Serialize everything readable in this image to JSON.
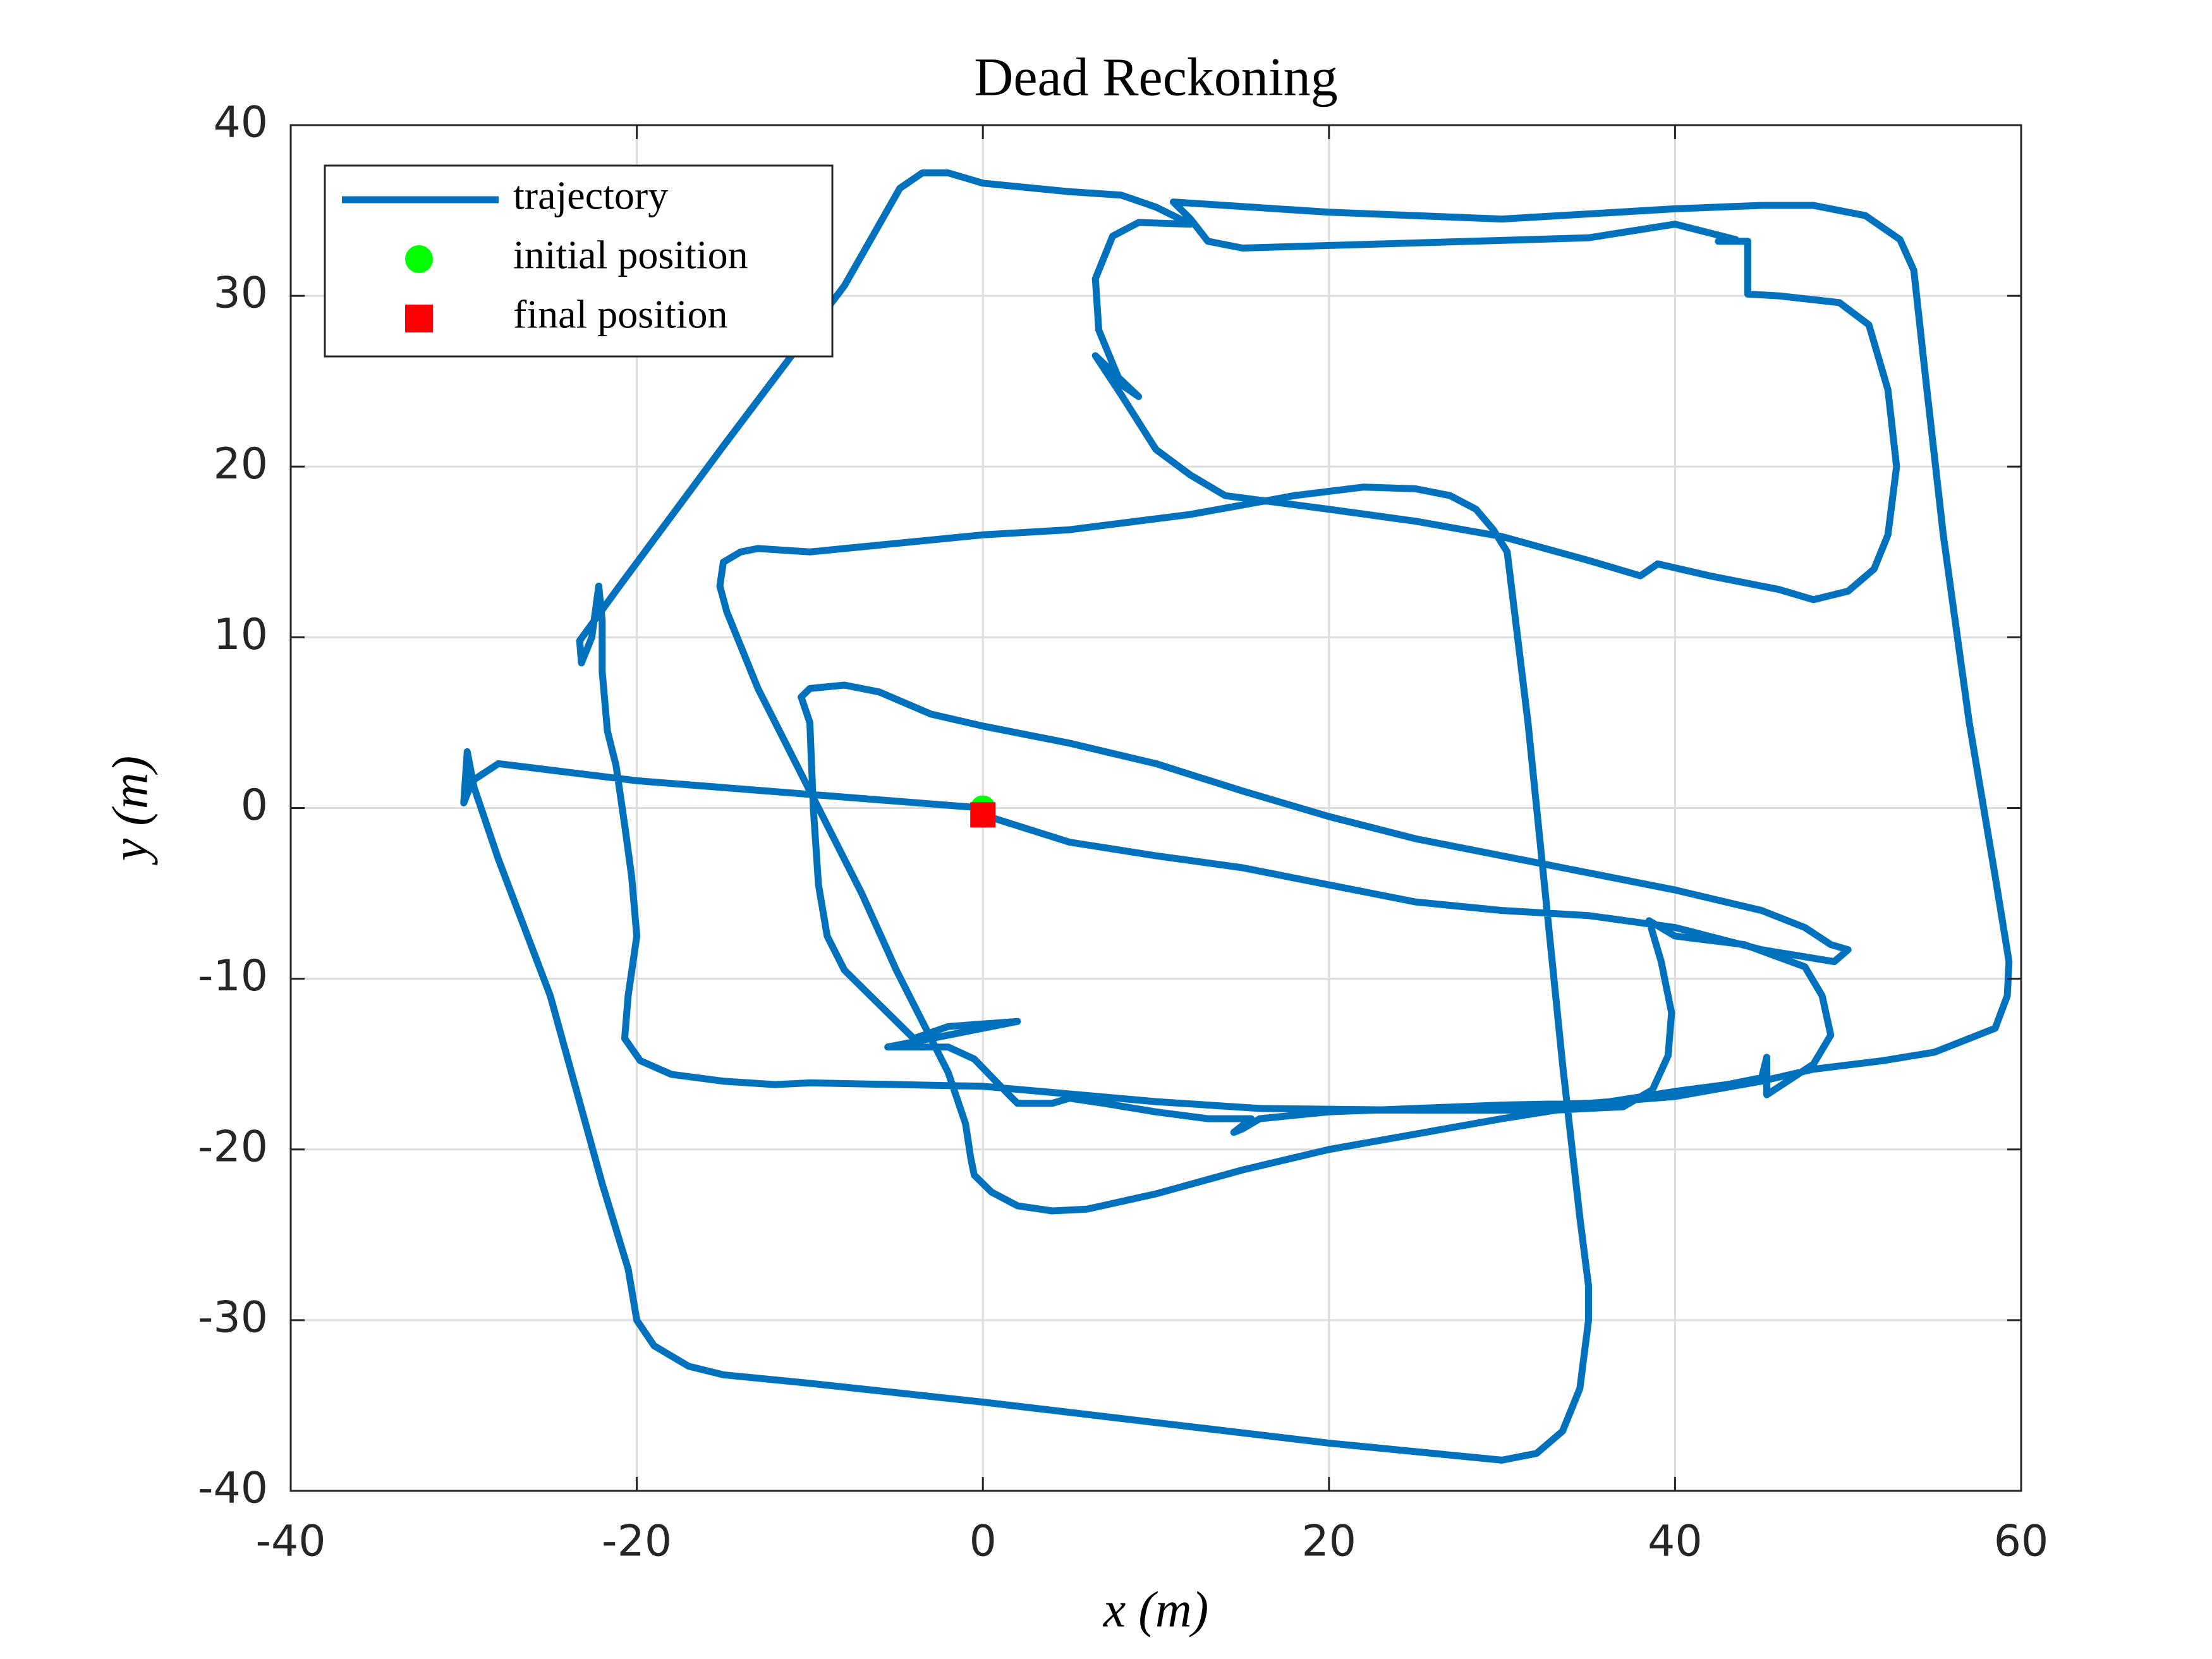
{
  "chart_data": {
    "type": "line",
    "title": "Dead Reckoning",
    "x_label": "x (m)",
    "y_label": "y (m)",
    "xlim": [
      -40,
      60
    ],
    "ylim": [
      -40,
      40
    ],
    "xticks": [
      -40,
      -20,
      0,
      20,
      40,
      60
    ],
    "yticks": [
      -40,
      -30,
      -20,
      -10,
      0,
      10,
      20,
      30,
      40
    ],
    "grid": true,
    "legend": "upper left",
    "series": [
      {
        "name": "trajectory",
        "color": "#0072bd",
        "marker": "none",
        "x": [
          0,
          -10,
          -20,
          -24,
          -28,
          -29.5,
          -30,
          -29.8,
          -29.4,
          -28,
          -25,
          -22,
          -20.5,
          -20,
          -19,
          -17,
          -15,
          -10,
          0,
          10,
          20,
          28,
          30,
          32,
          33.5,
          34.5,
          35,
          35,
          34.5,
          33.5,
          32.5,
          31.5,
          30.3,
          29.5,
          28.5,
          27,
          25,
          22,
          18,
          12,
          5,
          0,
          -5,
          -10,
          -13,
          -14,
          -15,
          -15.2,
          -14.8,
          -13,
          -10,
          -7,
          -5,
          -3.5,
          -2,
          -1,
          -0.7,
          -0.5,
          0.5,
          2,
          4,
          6,
          10,
          15,
          20,
          25,
          30,
          35,
          40,
          43,
          45,
          45.3,
          45.3,
          48,
          49,
          48.5,
          47.5,
          44,
          40,
          38.5,
          39.2,
          39.8,
          39.6,
          38.7,
          37,
          33,
          25,
          16,
          10,
          0,
          -10,
          -12,
          -15,
          -18,
          -19.8,
          -20.7,
          -20.5,
          -20,
          -20.3,
          -20.7,
          -21.2,
          -21.7,
          -22,
          -22,
          -22.2,
          -22.6,
          -23.2,
          -23.3,
          -21,
          -15,
          -8,
          -4.8,
          -3.5,
          -2,
          0,
          5,
          8,
          10,
          12,
          9,
          7.5,
          6.5,
          6.7,
          8,
          9,
          6.5,
          8,
          10,
          12,
          14,
          20,
          25,
          30,
          35,
          38,
          39,
          42,
          46,
          48,
          50,
          51.5,
          52.3,
          52.8,
          52.3,
          51.2,
          49.5,
          46,
          44.2,
          44.2,
          42.5,
          43.5,
          40,
          35,
          25,
          15,
          13,
          12,
          11,
          20,
          30,
          40,
          45,
          48,
          51,
          53,
          53.8,
          54.5,
          55.5,
          57,
          58.5,
          59.3,
          59.2,
          58.5,
          55,
          52,
          48,
          45,
          40,
          35,
          30,
          20,
          16,
          15,
          14.5,
          15.5,
          13,
          10,
          7,
          5,
          4,
          2,
          1.5,
          -0.5,
          -2,
          -5.5,
          2,
          -2,
          -4,
          -6,
          -8,
          -9,
          -9.5,
          -9.8,
          -10,
          -10.5,
          -10,
          -8,
          -6,
          -3,
          0,
          5,
          10,
          15,
          20,
          25,
          30,
          35,
          40,
          45,
          47.5,
          49,
          50,
          49.2,
          45,
          40,
          35,
          30,
          25,
          20,
          15,
          10,
          5,
          0
        ],
        "y": [
          0,
          0.8,
          1.6,
          2.1,
          2.6,
          1.6,
          0.3,
          3.3,
          1.2,
          -3,
          -11,
          -22,
          -27,
          -30,
          -31.5,
          -32.7,
          -33.2,
          -33.7,
          -34.8,
          -36,
          -37.2,
          -38,
          -38.2,
          -37.8,
          -36.5,
          -34,
          -30,
          -28,
          -24,
          -15,
          -5,
          5,
          15,
          16.3,
          17.5,
          18.3,
          18.7,
          18.8,
          18.3,
          17.2,
          16.3,
          16,
          15.5,
          15,
          15.2,
          15,
          14.4,
          13,
          11.5,
          7,
          1,
          -5,
          -9.5,
          -12.5,
          -15.5,
          -18.5,
          -20.5,
          -21.5,
          -22.5,
          -23.3,
          -23.6,
          -23.5,
          -22.6,
          -21.2,
          -20,
          -19.1,
          -18.2,
          -17.4,
          -16.6,
          -16.2,
          -15.8,
          -14.6,
          -16.8,
          -15,
          -13.3,
          -11,
          -9.3,
          -8,
          -7.5,
          -6.6,
          -9,
          -12,
          -14.5,
          -16.5,
          -17.5,
          -17.7,
          -17.7,
          -17.6,
          -17.2,
          -16.3,
          -16.1,
          -16.2,
          -16,
          -15.6,
          -14.8,
          -13.5,
          -11,
          -7.5,
          -4,
          -1,
          2.5,
          4.5,
          8,
          11,
          13,
          10,
          8.5,
          9.8,
          13,
          21.2,
          30.6,
          36.3,
          37.2,
          37.2,
          36.6,
          36.1,
          35.9,
          35.2,
          34.2,
          34.3,
          33.5,
          31,
          28,
          24.8,
          24.1,
          26.5,
          24.2,
          21,
          19.5,
          18.3,
          17.5,
          16.8,
          15.9,
          14.5,
          13.6,
          14.3,
          13.6,
          12.8,
          12.2,
          12.7,
          14,
          16,
          20,
          24.5,
          28.3,
          29.6,
          30,
          30.1,
          33.2,
          33.2,
          33.3,
          34.2,
          33.4,
          33.1,
          32.8,
          33.2,
          34.5,
          35.5,
          34.9,
          34.5,
          35.1,
          35.3,
          35.3,
          34.7,
          33.3,
          31.5,
          25,
          16,
          5,
          -4,
          -9,
          -11,
          -12.9,
          -14.3,
          -14.8,
          -15.3,
          -16,
          -16.9,
          -17.3,
          -17.4,
          -17.8,
          -18.2,
          -18.8,
          -19,
          -18.2,
          -18.2,
          -17.8,
          -17.3,
          -17,
          -17.3,
          -17.3,
          -16.8,
          -14.7,
          -14,
          -14,
          -12.5,
          -12.8,
          -13.5,
          -11.5,
          -9.5,
          -7.5,
          -4.5,
          0,
          5,
          6.5,
          7,
          7.2,
          6.8,
          5.5,
          4.8,
          3.8,
          2.6,
          1,
          -0.5,
          -1.8,
          -2.8,
          -3.8,
          -4.8,
          -6,
          -7,
          -8,
          -8.3,
          -9,
          -8.3,
          -7,
          -6.3,
          -6,
          -5.5,
          -4.5,
          -3.5,
          -2.8,
          -2,
          -0.4
        ]
      },
      {
        "name": "initial position",
        "color": "#00ff00",
        "marker": "circle",
        "x": [
          0
        ],
        "y": [
          0
        ]
      },
      {
        "name": "final position",
        "color": "#ff0000",
        "marker": "square",
        "x": [
          0
        ],
        "y": [
          -0.4
        ]
      }
    ]
  }
}
